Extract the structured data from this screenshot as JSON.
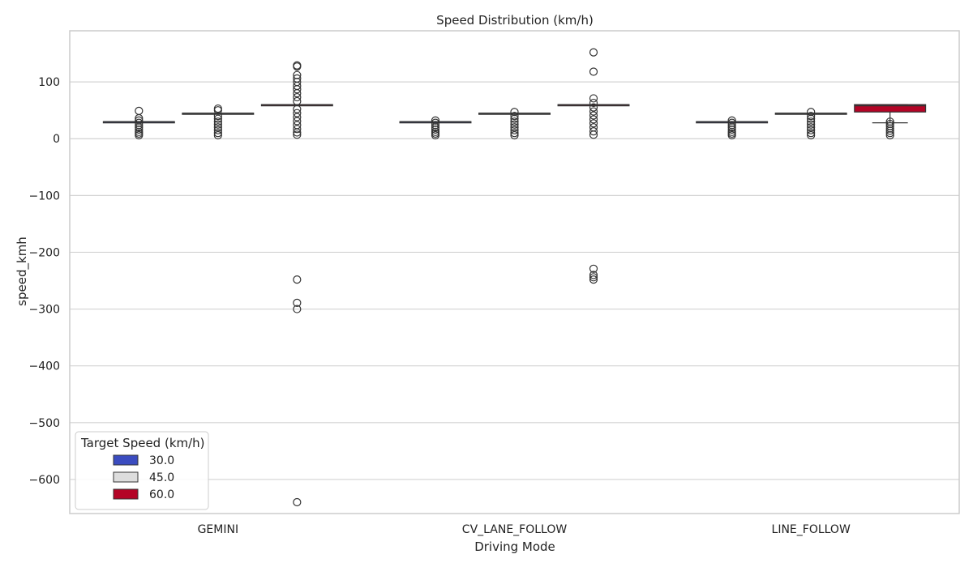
{
  "chart_data": {
    "type": "box",
    "title": "Speed Distribution (km/h)",
    "xlabel": "Driving Mode",
    "ylabel": "speed_kmh",
    "categories": [
      "GEMINI",
      "CV_LANE_FOLLOW",
      "LINE_FOLLOW"
    ],
    "ylim": [
      -660,
      190
    ],
    "yticks": [
      100,
      0,
      -100,
      -200,
      -300,
      -400,
      -500,
      -600
    ],
    "ytick_labels": [
      "100",
      "0",
      "−100",
      "−200",
      "−300",
      "−400",
      "−500",
      "−600"
    ],
    "grid": "horizontal",
    "legend": {
      "title": "Target Speed (km/h)",
      "position": "bottom-left",
      "entries": [
        "30.0",
        "45.0",
        "60.0"
      ]
    },
    "series": [
      {
        "name": "30.0",
        "color": "#3b4cc0",
        "boxes": [
          {
            "category": "GEMINI",
            "q1": 30,
            "median": 30,
            "q3": 30,
            "whisker_low": 30,
            "whisker_high": 30,
            "outliers": [
              49,
              36,
              32,
              28,
              24,
              20,
              16,
              12,
              9,
              6
            ]
          },
          {
            "category": "CV_LANE_FOLLOW",
            "q1": 30,
            "median": 30,
            "q3": 30,
            "whisker_low": 30,
            "whisker_high": 30,
            "outliers": [
              32,
              28,
              24,
              20,
              16,
              12,
              9,
              6
            ]
          },
          {
            "category": "LINE_FOLLOW",
            "q1": 30,
            "median": 30,
            "q3": 30,
            "whisker_low": 30,
            "whisker_high": 30,
            "outliers": [
              32,
              28,
              24,
              20,
              16,
              12,
              9,
              6
            ]
          }
        ]
      },
      {
        "name": "45.0",
        "color": "#dddddd",
        "boxes": [
          {
            "category": "GEMINI",
            "q1": 45,
            "median": 45,
            "q3": 45,
            "whisker_low": 45,
            "whisker_high": 45,
            "outliers": [
              53,
              50,
              40,
              35,
              30,
              25,
              20,
              15,
              10,
              6
            ]
          },
          {
            "category": "CV_LANE_FOLLOW",
            "q1": 45,
            "median": 45,
            "q3": 45,
            "whisker_low": 45,
            "whisker_high": 45,
            "outliers": [
              47,
              40,
              35,
              30,
              25,
              20,
              15,
              10,
              6
            ]
          },
          {
            "category": "LINE_FOLLOW",
            "q1": 45,
            "median": 45,
            "q3": 45,
            "whisker_low": 45,
            "whisker_high": 45,
            "outliers": [
              47,
              40,
              35,
              30,
              25,
              20,
              15,
              10,
              6
            ]
          }
        ]
      },
      {
        "name": "60.0",
        "color": "#b40426",
        "boxes": [
          {
            "category": "GEMINI",
            "q1": 60,
            "median": 60,
            "q3": 60,
            "whisker_low": 60,
            "whisker_high": 60,
            "outliers": [
              129,
              127,
              112,
              106,
              100,
              93,
              87,
              80,
              73,
              66,
              52,
              45,
              38,
              31,
              24,
              17,
              11,
              7,
              -248,
              -289,
              -300,
              -640
            ]
          },
          {
            "category": "CV_LANE_FOLLOW",
            "q1": 60,
            "median": 60,
            "q3": 60,
            "whisker_low": 60,
            "whisker_high": 60,
            "outliers": [
              152,
              118,
              71,
              63,
              55,
              48,
              41,
              34,
              27,
              20,
              13,
              7,
              -229,
              -240,
              -244,
              -248
            ]
          },
          {
            "category": "LINE_FOLLOW",
            "q1": 47,
            "median": 58,
            "q3": 60,
            "whisker_low": 28,
            "whisker_high": 60,
            "outliers": [
              30,
              26,
              22,
              18,
              14,
              10,
              6
            ]
          }
        ]
      }
    ]
  }
}
